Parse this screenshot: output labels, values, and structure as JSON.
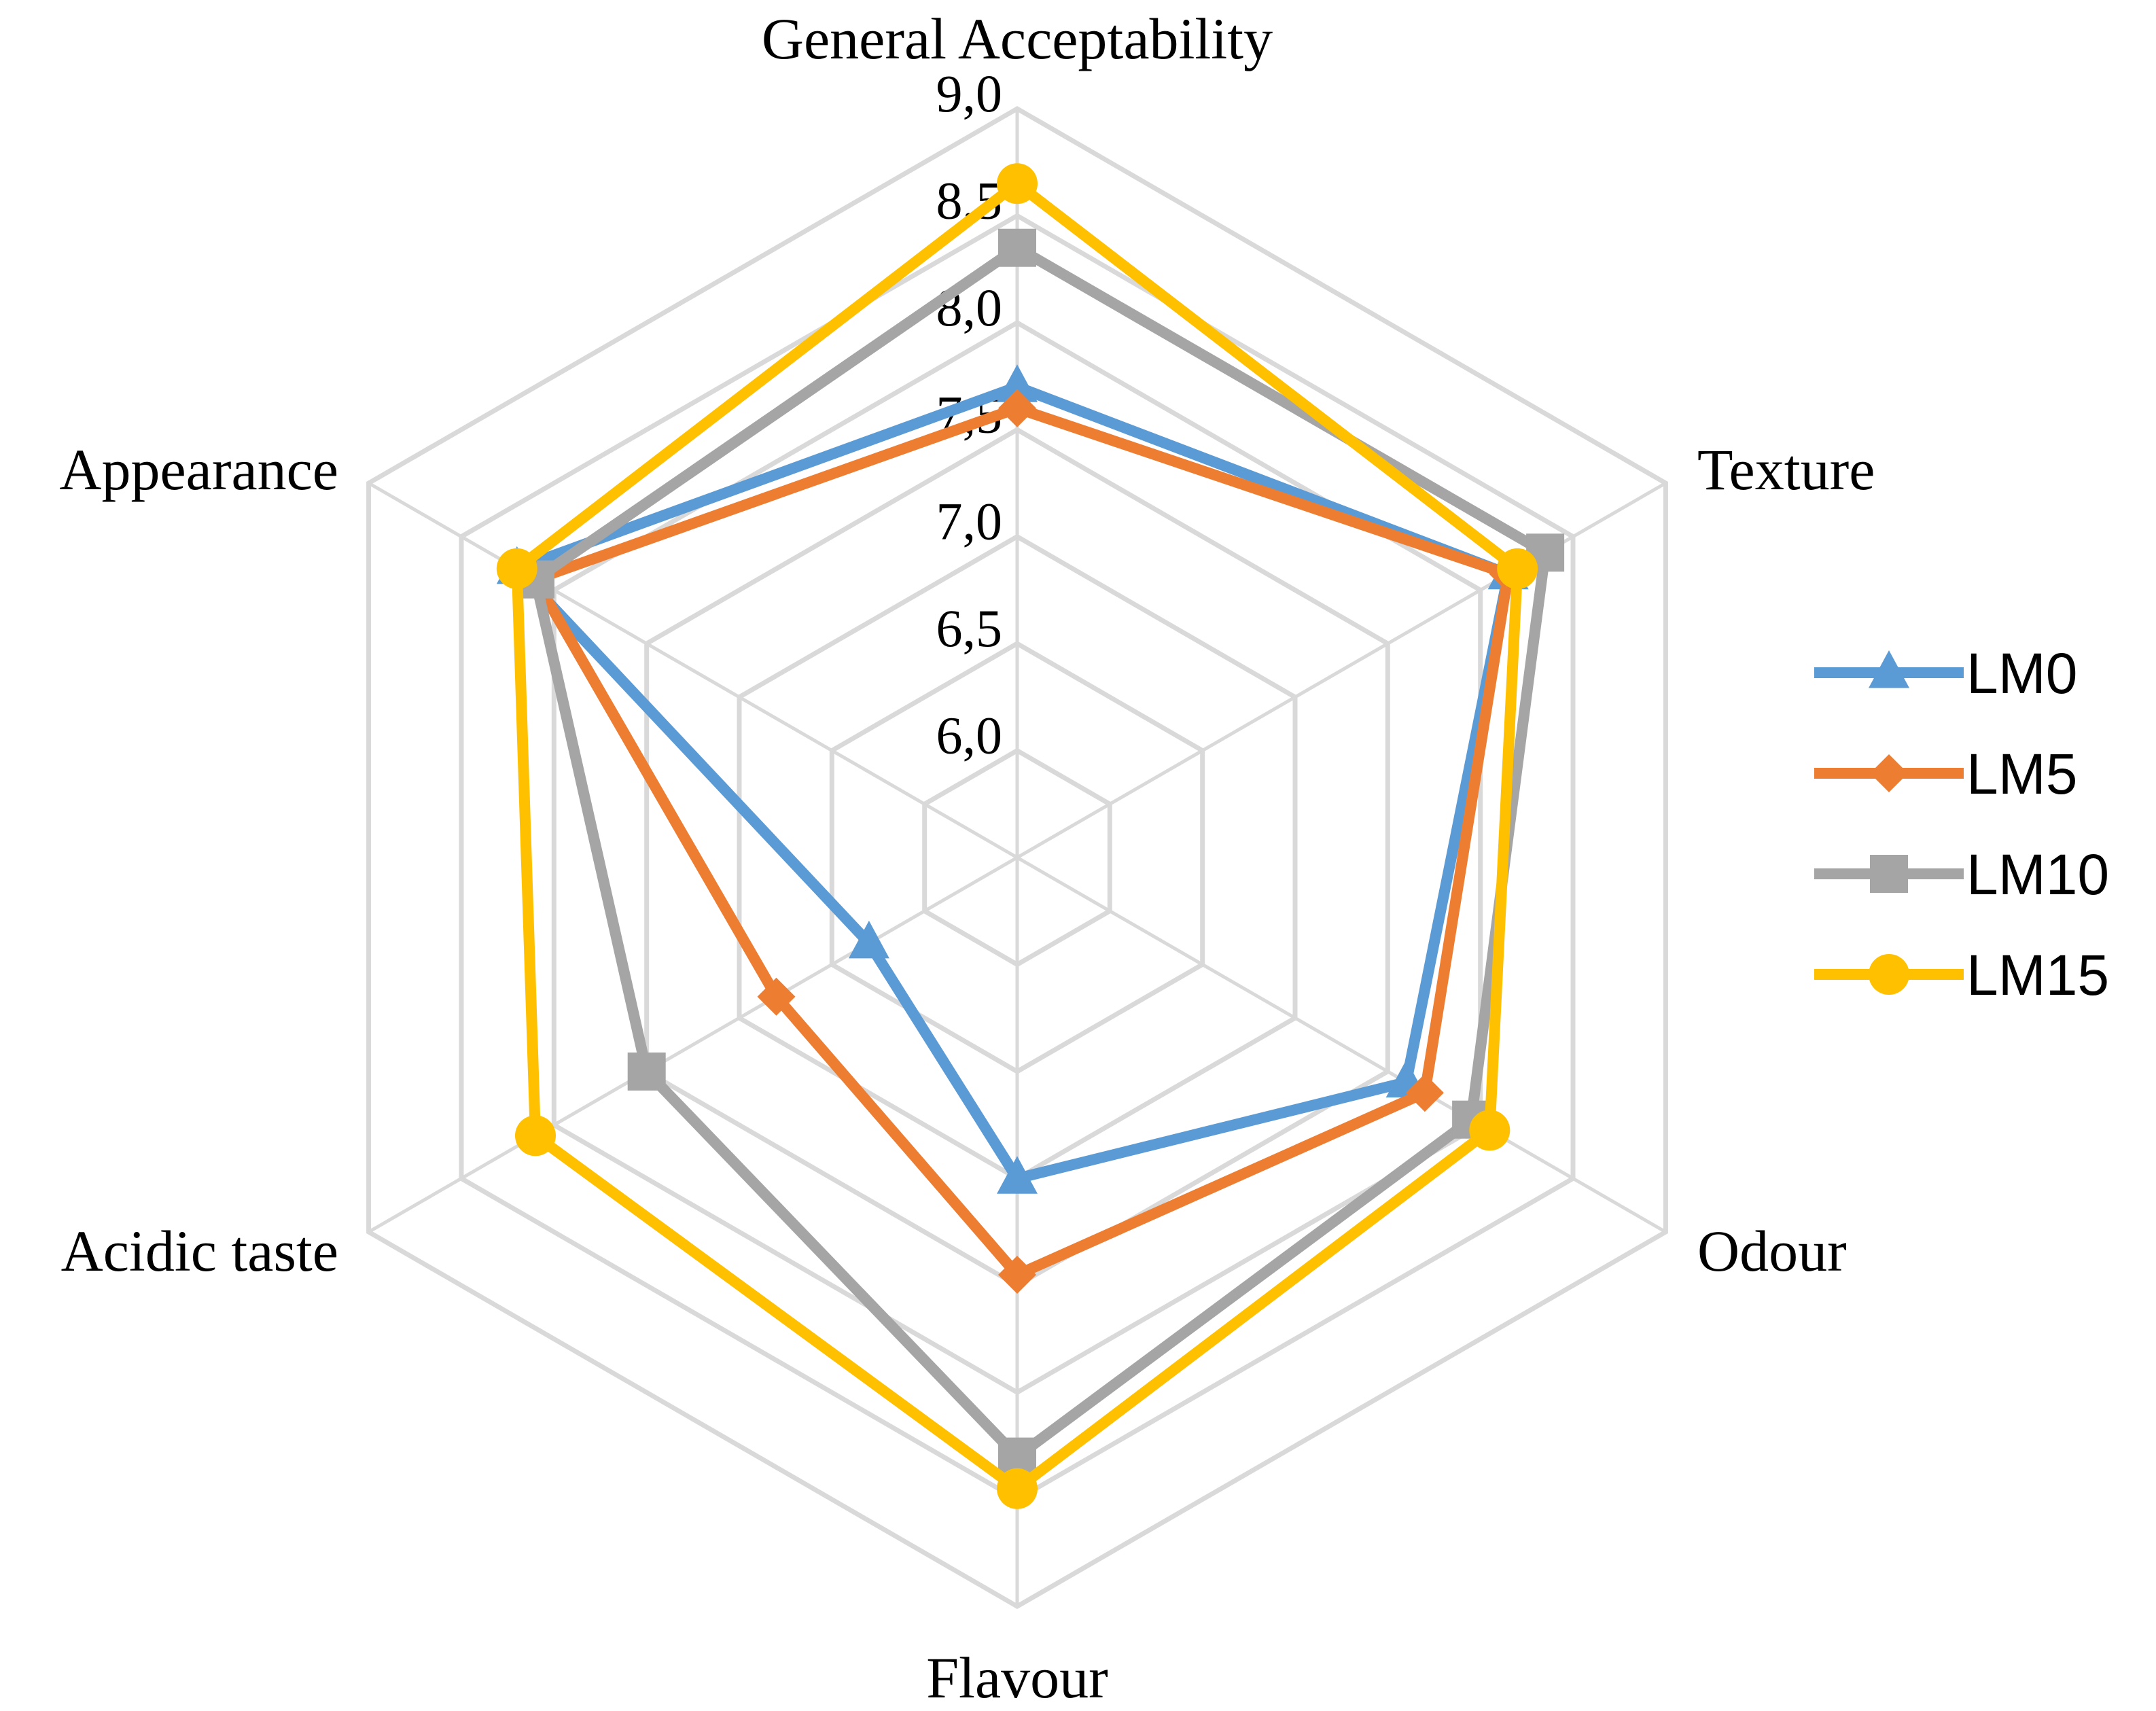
{
  "chart_data": {
    "type": "radar",
    "categories": [
      "General Acceptability",
      "Texture",
      "Odour",
      "Flavour",
      "Acidic taste",
      "Appearance"
    ],
    "rlim": [
      5.5,
      9.0
    ],
    "ticks": [
      "6,0",
      "6,5",
      "7,0",
      "7,5",
      "8,0",
      "8,5",
      "9,0"
    ],
    "tick_values": [
      6.0,
      6.5,
      7.0,
      7.5,
      8.0,
      8.5,
      9.0
    ],
    "grid": true,
    "legend_position": "right",
    "series": [
      {
        "name": "LM0",
        "color": "#5b9bd5",
        "marker": "triangle",
        "values": [
          7.7,
          8.15,
          7.6,
          7.0,
          6.3,
          8.2
        ]
      },
      {
        "name": "LM5",
        "color": "#ed7d31",
        "marker": "diamond",
        "values": [
          7.6,
          8.15,
          7.7,
          7.45,
          6.8,
          8.1
        ]
      },
      {
        "name": "LM10",
        "color": "#a5a5a5",
        "marker": "square",
        "values": [
          8.35,
          8.35,
          7.95,
          8.3,
          7.5,
          8.1
        ]
      },
      {
        "name": "LM15",
        "color": "#ffc000",
        "marker": "circle",
        "values": [
          8.65,
          8.2,
          8.05,
          8.45,
          8.1,
          8.2
        ]
      }
    ]
  }
}
